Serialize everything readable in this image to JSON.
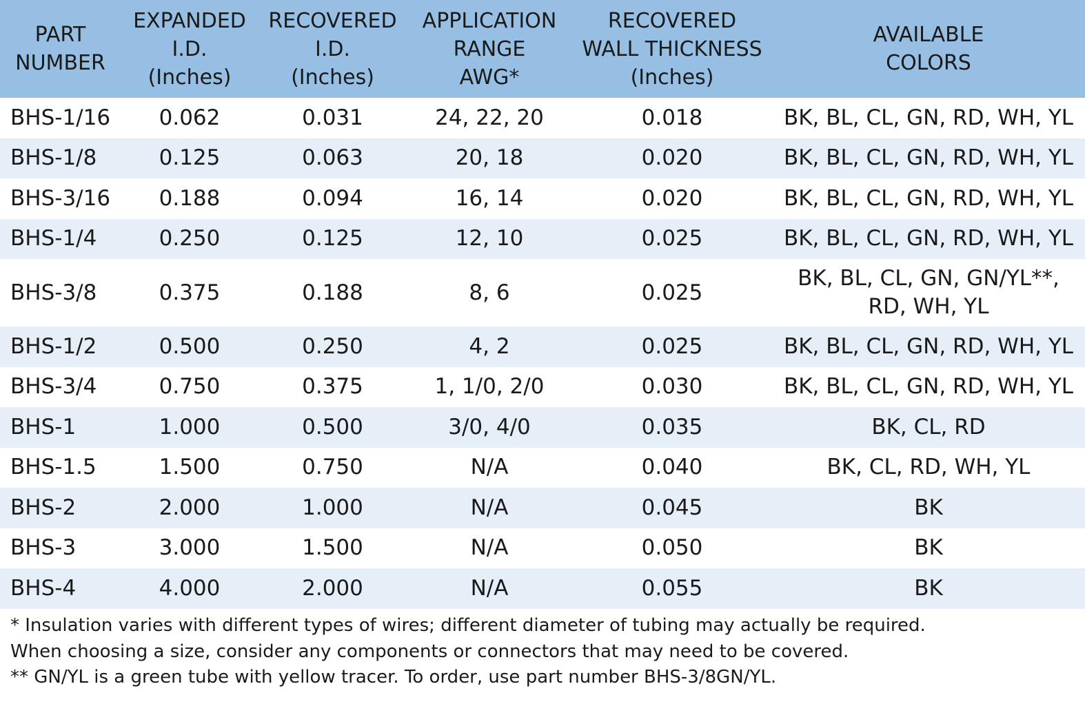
{
  "table": {
    "headers": [
      [
        "PART",
        "NUMBER"
      ],
      [
        "EXPANDED",
        "I.D.",
        "(Inches)"
      ],
      [
        "RECOVERED",
        "I.D.",
        "(Inches)"
      ],
      [
        "APPLICATION",
        "RANGE",
        "AWG*"
      ],
      [
        "RECOVERED",
        "WALL THICKNESS",
        "(Inches)"
      ],
      [
        "AVAILABLE",
        "COLORS"
      ]
    ],
    "rows": [
      {
        "part": "BHS-1/16",
        "expanded": "0.062",
        "recovered": "0.031",
        "awg": "24, 22, 20",
        "wall": "0.018",
        "colors": [
          "BK, BL, CL, GN, RD, WH, YL"
        ]
      },
      {
        "part": "BHS-1/8",
        "expanded": "0.125",
        "recovered": "0.063",
        "awg": "20, 18",
        "wall": "0.020",
        "colors": [
          "BK, BL, CL, GN, RD, WH, YL"
        ]
      },
      {
        "part": "BHS-3/16",
        "expanded": "0.188",
        "recovered": "0.094",
        "awg": "16, 14",
        "wall": "0.020",
        "colors": [
          "BK, BL, CL, GN, RD, WH, YL"
        ]
      },
      {
        "part": "BHS-1/4",
        "expanded": "0.250",
        "recovered": "0.125",
        "awg": "12, 10",
        "wall": "0.025",
        "colors": [
          "BK, BL, CL, GN, RD, WH, YL"
        ]
      },
      {
        "part": "BHS-3/8",
        "expanded": "0.375",
        "recovered": "0.188",
        "awg": "8, 6",
        "wall": "0.025",
        "colors": [
          "BK, BL, CL, GN, GN/YL**,",
          "RD, WH, YL"
        ]
      },
      {
        "part": "BHS-1/2",
        "expanded": "0.500",
        "recovered": "0.250",
        "awg": "4, 2",
        "wall": "0.025",
        "colors": [
          "BK, BL, CL, GN, RD, WH, YL"
        ]
      },
      {
        "part": "BHS-3/4",
        "expanded": "0.750",
        "recovered": "0.375",
        "awg": "1, 1/0, 2/0",
        "wall": "0.030",
        "colors": [
          "BK, BL, CL, GN, RD, WH, YL"
        ]
      },
      {
        "part": "BHS-1",
        "expanded": "1.000",
        "recovered": "0.500",
        "awg": "3/0, 4/0",
        "wall": "0.035",
        "colors": [
          "BK, CL, RD"
        ]
      },
      {
        "part": "BHS-1.5",
        "expanded": "1.500",
        "recovered": "0.750",
        "awg": "N/A",
        "wall": "0.040",
        "colors": [
          "BK, CL, RD, WH, YL"
        ]
      },
      {
        "part": "BHS-2",
        "expanded": "2.000",
        "recovered": "1.000",
        "awg": "N/A",
        "wall": "0.045",
        "colors": [
          "BK"
        ]
      },
      {
        "part": "BHS-3",
        "expanded": "3.000",
        "recovered": "1.500",
        "awg": "N/A",
        "wall": "0.050",
        "colors": [
          "BK"
        ]
      },
      {
        "part": "BHS-4",
        "expanded": "4.000",
        "recovered": "2.000",
        "awg": "N/A",
        "wall": "0.055",
        "colors": [
          "BK"
        ]
      }
    ]
  },
  "notes": [
    "* Insulation varies with different types of wires; different diameter of tubing may actually be required.",
    "When choosing a size, consider any components or connectors that may need to be covered.",
    "** GN/YL is a green tube with yellow tracer.  To order, use part number BHS-3/8GN/YL."
  ],
  "colors": {
    "header_bg": "#97bfe4",
    "stripe_bg": "#e6eff8",
    "text": "#1a1a1a"
  }
}
